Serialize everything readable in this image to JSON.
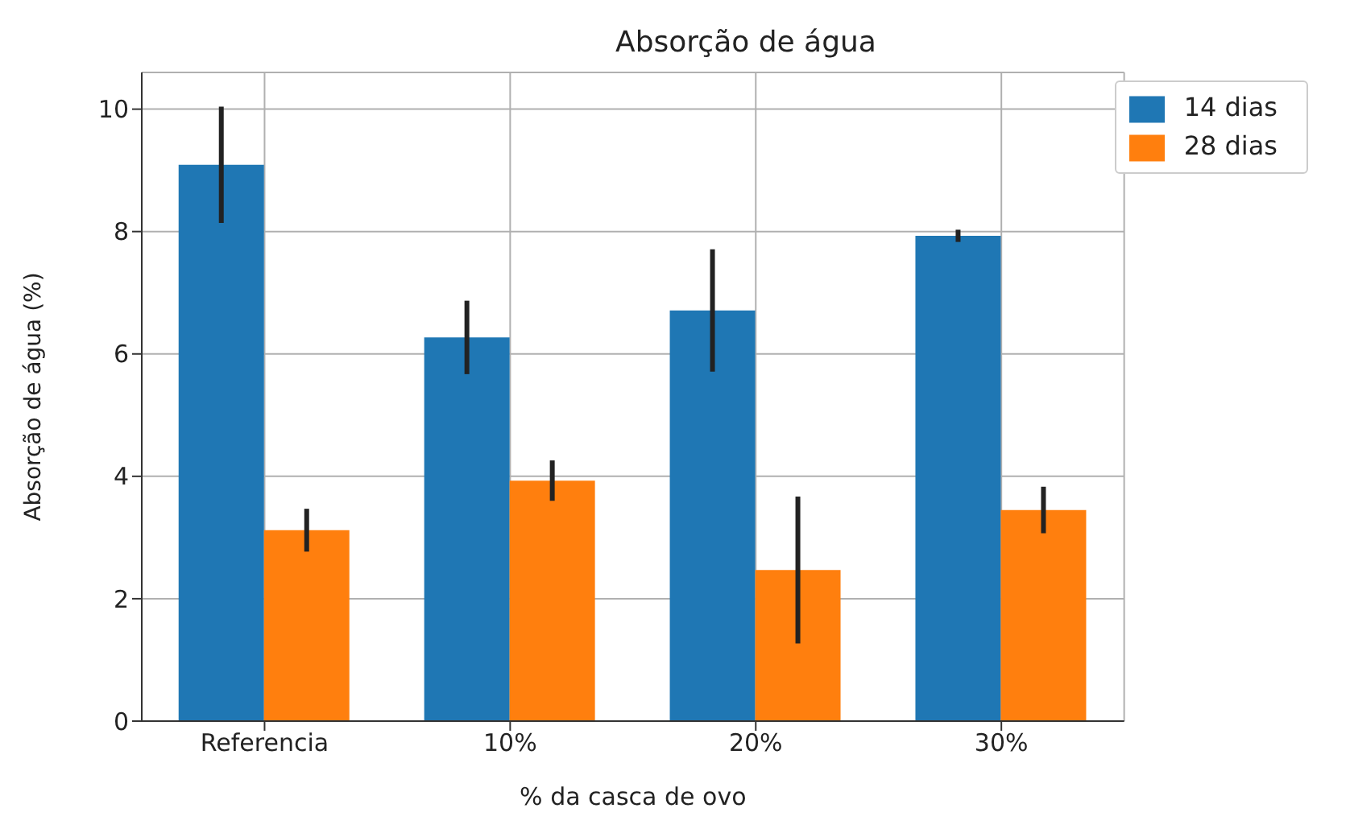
{
  "chart_data": {
    "type": "bar",
    "title": "Absorção de água",
    "xlabel": "% da casca de ovo",
    "ylabel": "Absorção de água (%)",
    "categories": [
      "Referencia",
      "10%",
      "20%",
      "30%"
    ],
    "series": [
      {
        "name": "14 dias",
        "color": "#1f77b4",
        "values": [
          9.09,
          6.27,
          6.71,
          7.93
        ],
        "errors": [
          0.95,
          0.6,
          1.0,
          0.1
        ]
      },
      {
        "name": "28 dias",
        "color": "#ff7f0e",
        "values": [
          3.12,
          3.93,
          2.47,
          3.45
        ],
        "errors": [
          0.35,
          0.33,
          1.2,
          0.38
        ]
      }
    ],
    "ylim": [
      0,
      10.6
    ],
    "yticks": [
      0,
      2,
      4,
      6,
      8,
      10
    ],
    "grid": true,
    "legend": "top right"
  }
}
